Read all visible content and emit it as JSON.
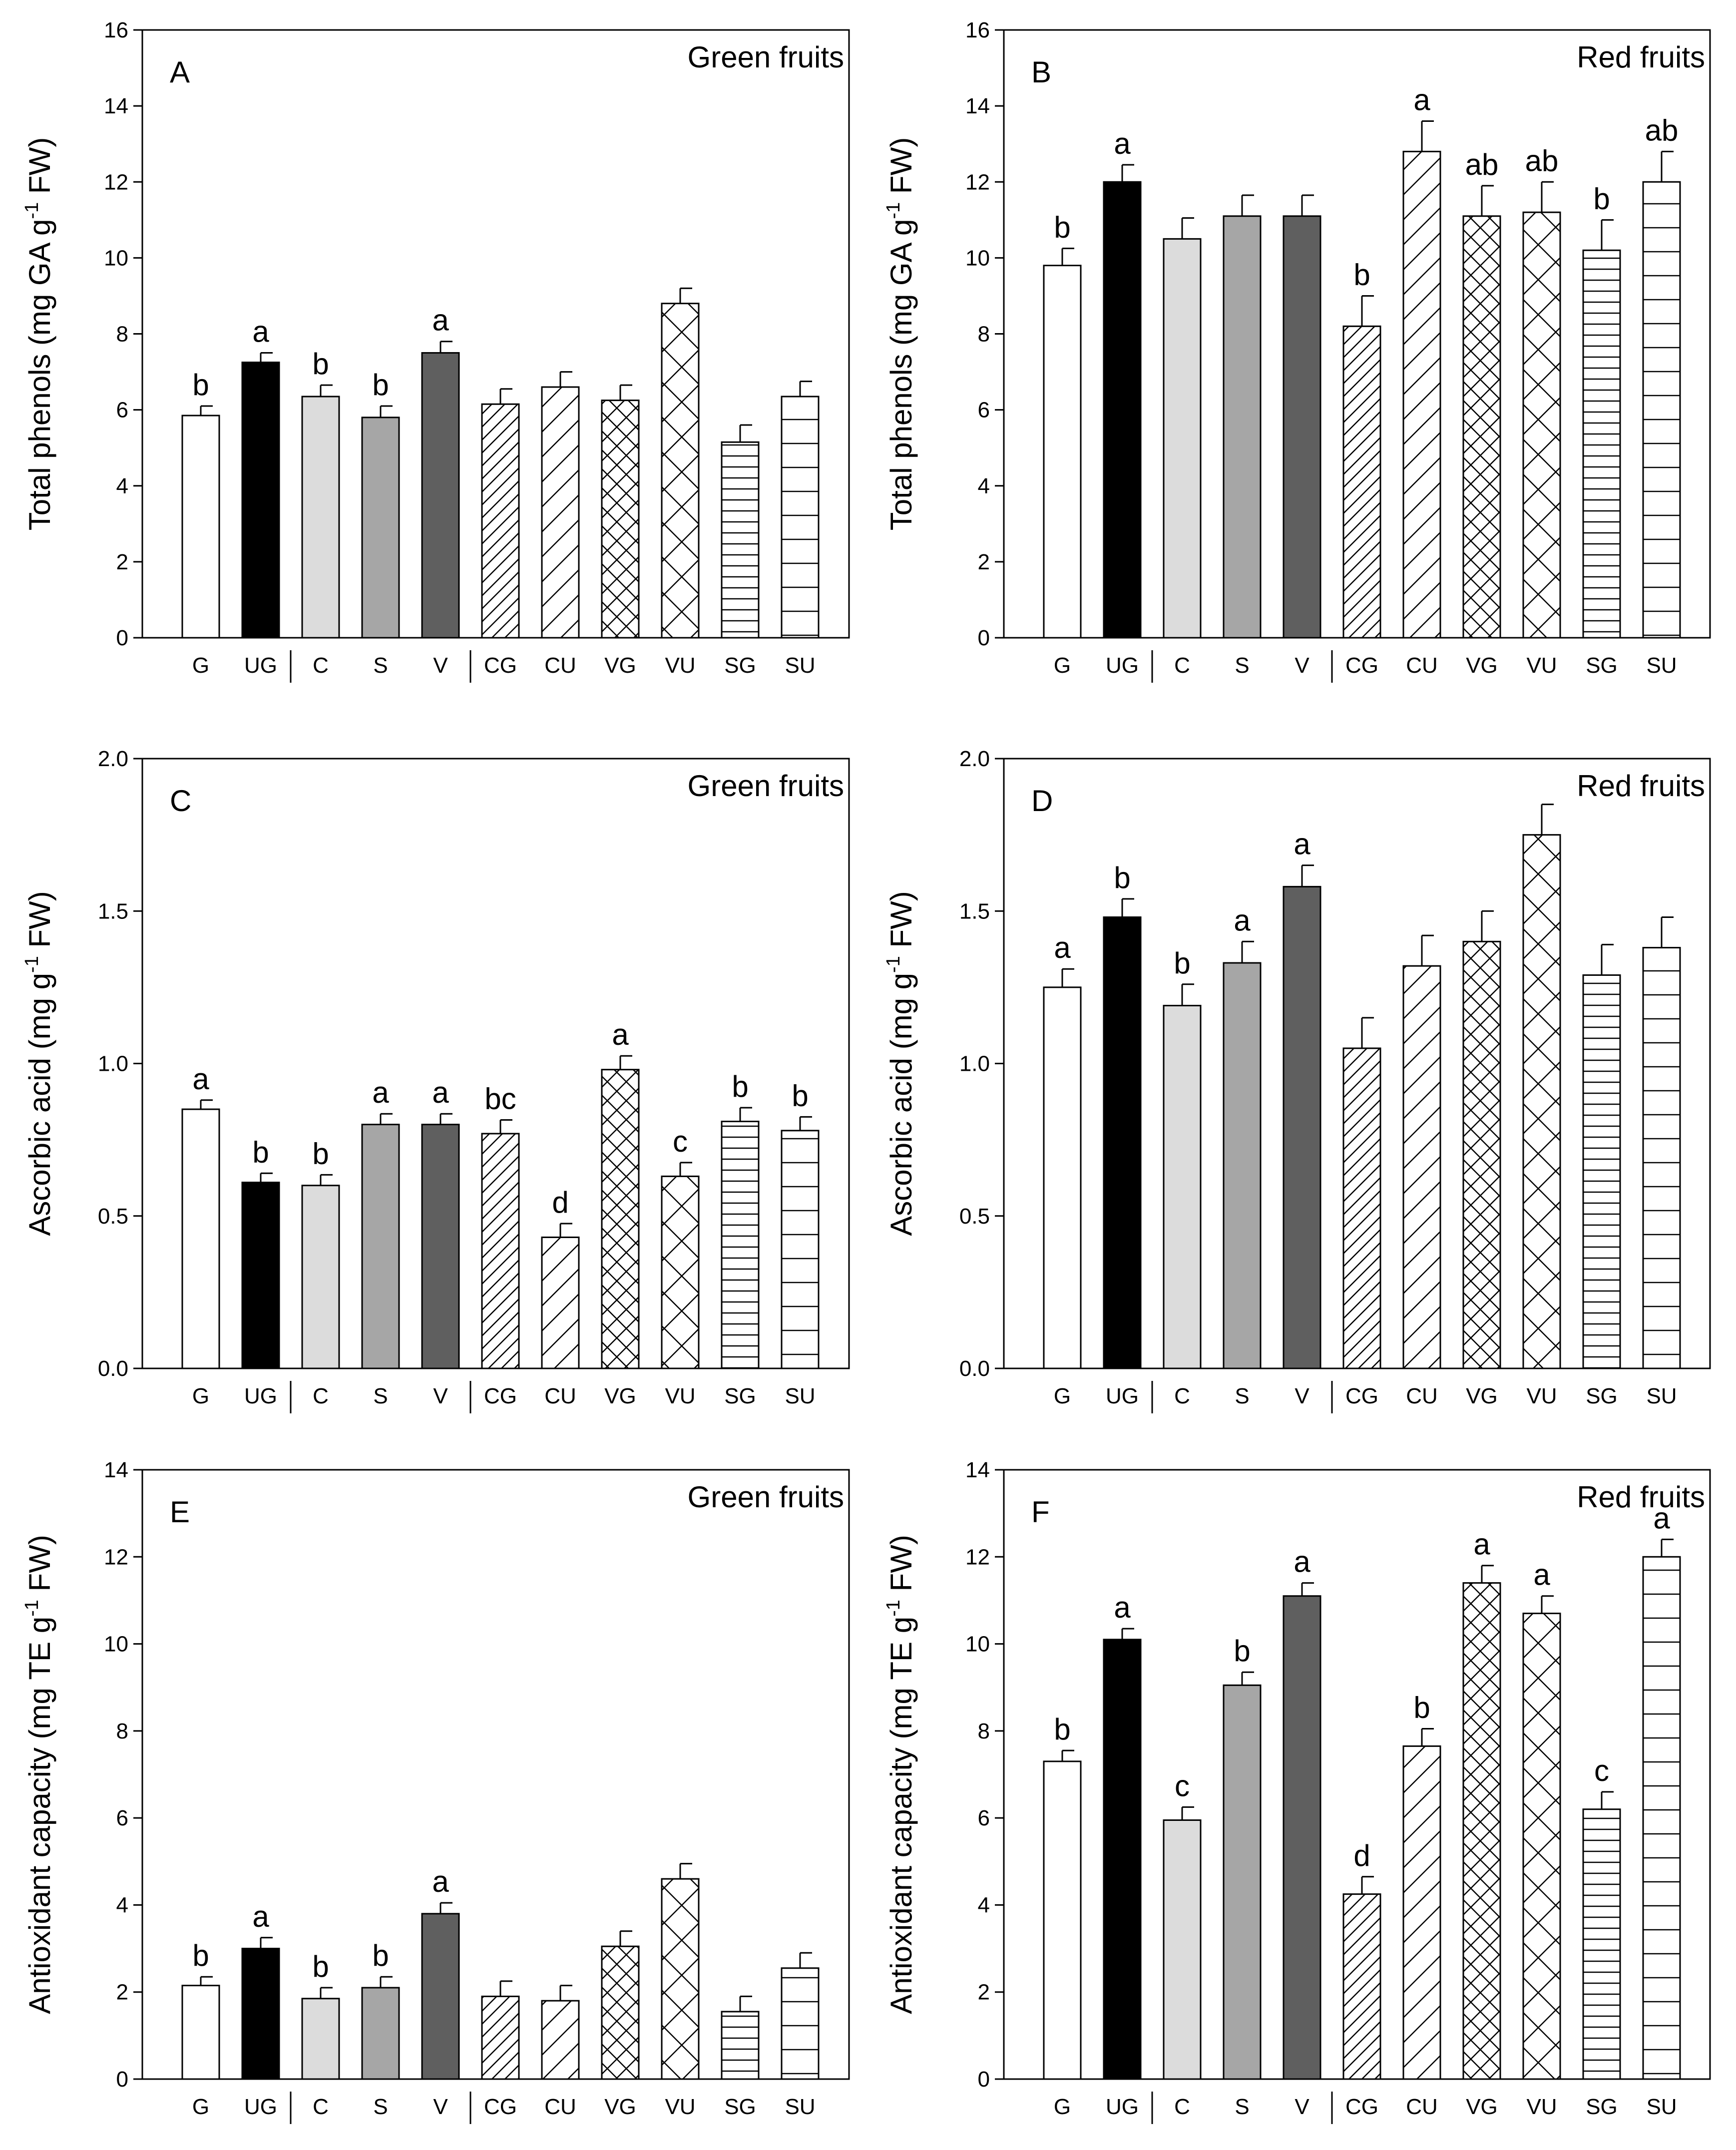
{
  "colors": {
    "G": "#ffffff",
    "UG": "#000000",
    "C": "#dcdcdc",
    "S": "#a6a6a6",
    "V": "#5f5f5f",
    "hatch_fill": "#ffffff",
    "axis": "#000000"
  },
  "chart_data": [
    {
      "panel": "A",
      "type": "bar",
      "title": "Green fruits",
      "ylabel": "Total phenols (mg GA g-1 FW)",
      "ylabel_parts": [
        "Total phenols (mg GA g",
        "-1",
        " FW)"
      ],
      "ylim": [
        0,
        16
      ],
      "yticks": [
        "0",
        "2",
        "4",
        "6",
        "8",
        "10",
        "12",
        "14",
        "16"
      ],
      "ytick_values": [
        0,
        2,
        4,
        6,
        8,
        10,
        12,
        14,
        16
      ],
      "categories": [
        "G",
        "UG",
        "C",
        "S",
        "V",
        "CG",
        "CU",
        "VG",
        "VU",
        "SG",
        "SU"
      ],
      "values": [
        5.85,
        7.25,
        6.35,
        5.8,
        7.5,
        6.15,
        6.6,
        6.25,
        8.8,
        5.15,
        6.35
      ],
      "errors": [
        0.25,
        0.25,
        0.3,
        0.3,
        0.3,
        0.4,
        0.4,
        0.4,
        0.4,
        0.45,
        0.4
      ],
      "letters": [
        "b",
        "a",
        "b",
        "b",
        "a",
        "",
        "",
        "",
        "",
        "",
        ""
      ]
    },
    {
      "panel": "B",
      "type": "bar",
      "title": "Red fruits",
      "ylabel": "Total phenols (mg GA g-1 FW)",
      "ylabel_parts": [
        "Total phenols (mg GA g",
        "-1",
        " FW)"
      ],
      "ylim": [
        0,
        16
      ],
      "yticks": [
        "0",
        "2",
        "4",
        "6",
        "8",
        "10",
        "12",
        "14",
        "16"
      ],
      "ytick_values": [
        0,
        2,
        4,
        6,
        8,
        10,
        12,
        14,
        16
      ],
      "categories": [
        "G",
        "UG",
        "C",
        "S",
        "V",
        "CG",
        "CU",
        "VG",
        "VU",
        "SG",
        "SU"
      ],
      "values": [
        9.8,
        12.0,
        10.5,
        11.1,
        11.1,
        8.2,
        12.8,
        11.1,
        11.2,
        10.2,
        12.0
      ],
      "errors": [
        0.45,
        0.45,
        0.55,
        0.55,
        0.55,
        0.8,
        0.8,
        0.8,
        0.8,
        0.8,
        0.8
      ],
      "letters": [
        "b",
        "a",
        "",
        "",
        "",
        "b",
        "a",
        "ab",
        "ab",
        "b",
        "ab"
      ]
    },
    {
      "panel": "C",
      "type": "bar",
      "title": "Green fruits",
      "ylabel": "Ascorbic acid (mg g-1 FW)",
      "ylabel_parts": [
        "Ascorbic acid (mg g",
        "-1",
        " FW)"
      ],
      "ylim": [
        0,
        2.0
      ],
      "yticks": [
        "0.0",
        "0.5",
        "1.0",
        "1.5",
        "2.0"
      ],
      "ytick_values": [
        0,
        0.5,
        1.0,
        1.5,
        2.0
      ],
      "categories": [
        "G",
        "UG",
        "C",
        "S",
        "V",
        "CG",
        "CU",
        "VG",
        "VU",
        "SG",
        "SU"
      ],
      "values": [
        0.85,
        0.61,
        0.6,
        0.8,
        0.8,
        0.77,
        0.43,
        0.98,
        0.63,
        0.81,
        0.78
      ],
      "errors": [
        0.03,
        0.03,
        0.035,
        0.035,
        0.035,
        0.045,
        0.045,
        0.045,
        0.045,
        0.045,
        0.045
      ],
      "letters": [
        "a",
        "b",
        "b",
        "a",
        "a",
        "bc",
        "d",
        "a",
        "c",
        "b",
        "b"
      ]
    },
    {
      "panel": "D",
      "type": "bar",
      "title": "Red fruits",
      "ylabel": "Ascorbic acid (mg g-1 FW)",
      "ylabel_parts": [
        "Ascorbic acid (mg g",
        "-1",
        " FW)"
      ],
      "ylim": [
        0,
        2.0
      ],
      "yticks": [
        "0.0",
        "0.5",
        "1.0",
        "1.5",
        "2.0"
      ],
      "ytick_values": [
        0,
        0.5,
        1.0,
        1.5,
        2.0
      ],
      "categories": [
        "G",
        "UG",
        "C",
        "S",
        "V",
        "CG",
        "CU",
        "VG",
        "VU",
        "SG",
        "SU"
      ],
      "values": [
        1.25,
        1.48,
        1.19,
        1.33,
        1.58,
        1.05,
        1.32,
        1.4,
        1.75,
        1.29,
        1.38
      ],
      "errors": [
        0.06,
        0.06,
        0.07,
        0.07,
        0.07,
        0.1,
        0.1,
        0.1,
        0.1,
        0.1,
        0.1
      ],
      "letters": [
        "a",
        "b",
        "b",
        "a",
        "a",
        "",
        "",
        "",
        "",
        "",
        ""
      ]
    },
    {
      "panel": "E",
      "type": "bar",
      "title": "Green fruits",
      "ylabel": "Antioxidant capacity (mg TE g-1 FW)",
      "ylabel_parts": [
        "Antioxidant capacity (mg TE g",
        "-1",
        " FW)"
      ],
      "ylim": [
        0,
        14
      ],
      "yticks": [
        "0",
        "2",
        "4",
        "6",
        "8",
        "10",
        "12",
        "14"
      ],
      "ytick_values": [
        0,
        2,
        4,
        6,
        8,
        10,
        12,
        14
      ],
      "categories": [
        "G",
        "UG",
        "C",
        "S",
        "V",
        "CG",
        "CU",
        "VG",
        "VU",
        "SG",
        "SU"
      ],
      "values": [
        2.15,
        3.0,
        1.85,
        2.1,
        3.8,
        1.9,
        1.8,
        3.05,
        4.6,
        1.55,
        2.55
      ],
      "errors": [
        0.2,
        0.25,
        0.25,
        0.25,
        0.25,
        0.35,
        0.35,
        0.35,
        0.35,
        0.35,
        0.35
      ],
      "letters": [
        "b",
        "a",
        "b",
        "b",
        "a",
        "",
        "",
        "",
        "",
        "",
        ""
      ]
    },
    {
      "panel": "F",
      "type": "bar",
      "title": "Red fruits",
      "ylabel": "Antioxidant capacity (mg TE g-1 FW)",
      "ylabel_parts": [
        "Antioxidant capacity (mg TE g",
        "-1",
        " FW)"
      ],
      "ylim": [
        0,
        14
      ],
      "yticks": [
        "0",
        "2",
        "4",
        "6",
        "8",
        "10",
        "12",
        "14"
      ],
      "ytick_values": [
        0,
        2,
        4,
        6,
        8,
        10,
        12,
        14
      ],
      "categories": [
        "G",
        "UG",
        "C",
        "S",
        "V",
        "CG",
        "CU",
        "VG",
        "VU",
        "SG",
        "SU"
      ],
      "values": [
        7.3,
        10.1,
        5.95,
        9.05,
        11.1,
        4.25,
        7.65,
        11.4,
        10.7,
        6.2,
        12.0
      ],
      "errors": [
        0.25,
        0.25,
        0.3,
        0.3,
        0.3,
        0.4,
        0.4,
        0.4,
        0.4,
        0.4,
        0.4
      ],
      "letters": [
        "b",
        "a",
        "c",
        "b",
        "a",
        "d",
        "b",
        "a",
        "a",
        "c",
        "a"
      ]
    }
  ]
}
